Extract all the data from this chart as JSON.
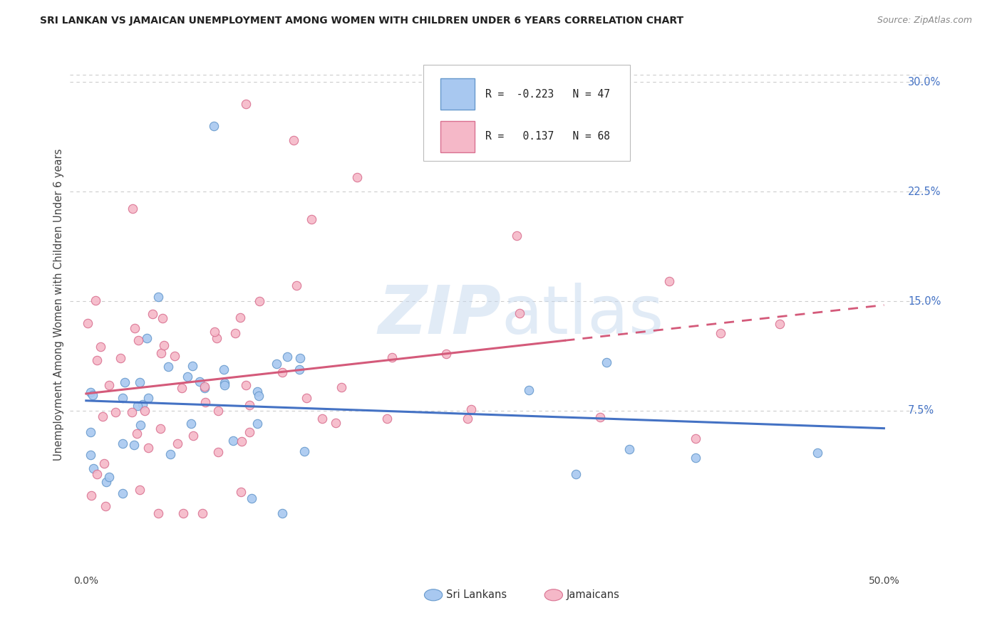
{
  "title": "SRI LANKAN VS JAMAICAN UNEMPLOYMENT AMONG WOMEN WITH CHILDREN UNDER 6 YEARS CORRELATION CHART",
  "source": "Source: ZipAtlas.com",
  "ylabel": "Unemployment Among Women with Children Under 6 years",
  "ytick_labels": [
    "7.5%",
    "15.0%",
    "22.5%",
    "30.0%"
  ],
  "ytick_values": [
    7.5,
    15.0,
    22.5,
    30.0
  ],
  "xtick_labels": [
    "0.0%",
    "50.0%"
  ],
  "xtick_values": [
    0.0,
    50.0
  ],
  "xlim": [
    -1.0,
    53.0
  ],
  "ylim": [
    -3.5,
    33.0
  ],
  "sri_lanka_color": "#a8c8f0",
  "sri_lanka_edge": "#6699cc",
  "jamaica_color": "#f5b8c8",
  "jamaica_edge": "#d97090",
  "sri_lanka_line_color": "#4472c4",
  "jamaica_line_color": "#d45a7a",
  "R_sri": -0.223,
  "N_sri": 47,
  "R_jam": 0.137,
  "N_jam": 68,
  "legend_sri_label": "Sri Lankans",
  "legend_jam_label": "Jamaicans",
  "marker_size": 80,
  "background_color": "#ffffff",
  "grid_color": "#cccccc",
  "watermark_color": "#c5d8ee",
  "watermark_alpha": 0.5,
  "right_label_color": "#4472c4"
}
